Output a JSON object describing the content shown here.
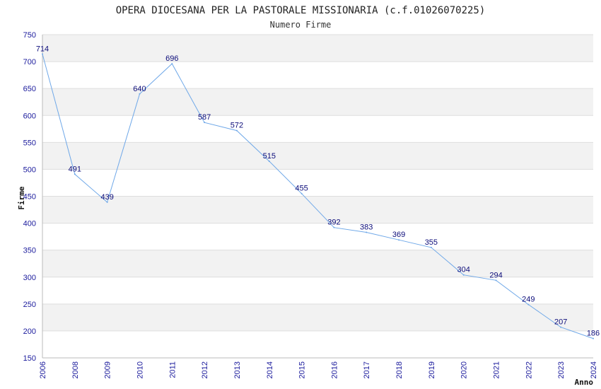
{
  "chart_data": {
    "type": "line",
    "title": "OPERA DIOCESANA PER LA PASTORALE MISSIONARIA (c.f.01026070225)",
    "subtitle": "Numero Firme",
    "xlabel": "Anno",
    "ylabel": "Firme",
    "ylim": [
      150,
      750
    ],
    "ytick_step": 50,
    "grid": true,
    "x": [
      "2006",
      "2008",
      "2009",
      "2010",
      "2011",
      "2012",
      "2013",
      "2014",
      "2015",
      "2016",
      "2017",
      "2018",
      "2019",
      "2020",
      "2021",
      "2022",
      "2023",
      "2024"
    ],
    "values": [
      714,
      491,
      439,
      640,
      696,
      587,
      572,
      515,
      455,
      392,
      383,
      369,
      355,
      304,
      294,
      249,
      207,
      186
    ]
  },
  "colors": {
    "line": "#6fa8e8",
    "band": "#f2f2f2",
    "grid": "#dddddd",
    "tick_text": "#1a1a9c",
    "data_label": "#0c0c7a"
  }
}
